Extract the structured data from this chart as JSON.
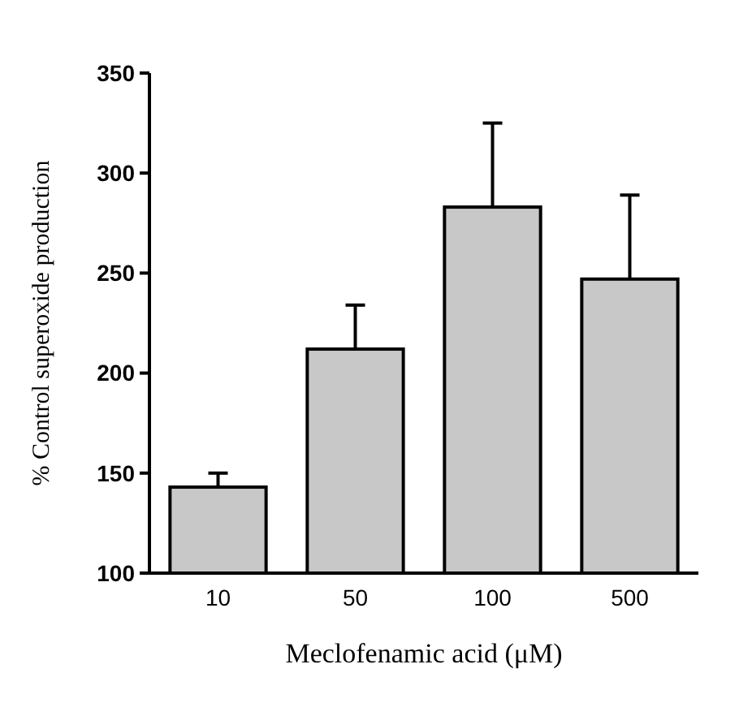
{
  "chart_data": {
    "type": "bar",
    "xlabel": "Meclofenamic acid (μM)",
    "ylabel": "% Control superoxide production",
    "categories": [
      "10",
      "50",
      "100",
      "500"
    ],
    "values": [
      143,
      212,
      283,
      247
    ],
    "errors": [
      [
        143,
        150
      ],
      [
        212,
        234
      ],
      [
        283,
        325
      ],
      [
        247,
        289
      ]
    ],
    "color": "#c8c8c8",
    "ylim": [
      100,
      350
    ],
    "yticks": [
      100,
      150,
      200,
      250,
      300,
      350
    ],
    "grid": false
  }
}
